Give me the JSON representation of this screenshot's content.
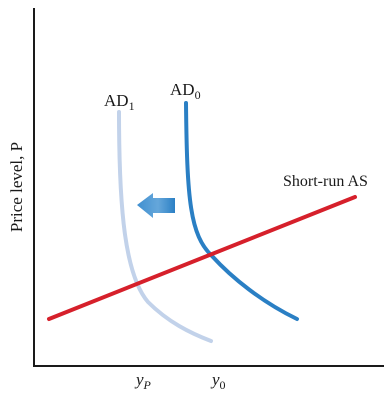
{
  "diagram": {
    "y_axis_label": "Price level, P",
    "curves": {
      "ad1": {
        "label": "AD",
        "subscript": "1",
        "color": "#c2d2ea"
      },
      "ad0": {
        "label": "AD",
        "subscript": "0",
        "color": "#2a7fc4"
      },
      "short_run_as": {
        "label": "Short-run AS",
        "color": "#d6202b"
      }
    },
    "x_ticks": {
      "yp": {
        "base": "y",
        "subscript": "P"
      },
      "y0": {
        "base": "y",
        "subscript": "0"
      }
    },
    "shift_arrow": {
      "direction": "left",
      "color": "#2a7fc4"
    },
    "axis_color": "#1a1a1a"
  }
}
